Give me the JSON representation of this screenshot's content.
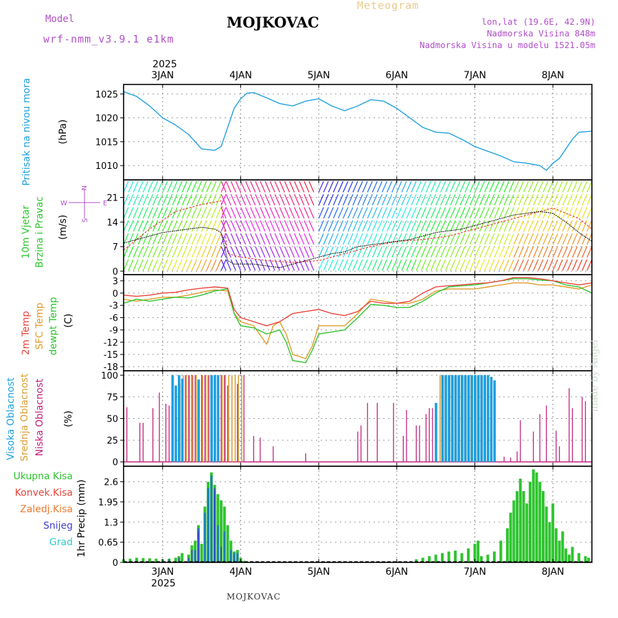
{
  "header": {
    "title": "MOJKOVAC",
    "subtitle": "Meteogram",
    "model_label": "Model",
    "model_name": "wrf-nmm_v3.9.1 e1km",
    "lonlat": "lon,lat (19.6E, 42.9N)",
    "elevation": "Nadmorska Visina 848m",
    "model_elevation": "Nadmorska Visina u modelu 1521.05m"
  },
  "footer": {
    "station": "MOJKOVAC",
    "credit": "made by Angel"
  },
  "colors": {
    "pressure": "#1e9fe0",
    "temp": "#e8433a",
    "sfc": "#e09b2a",
    "dewpt": "#2fc42f",
    "high_cloud": "#1e9fe0",
    "mid_cloud": "#d9a036",
    "low_cloud": "#c0207c",
    "total_precip": "#2fc42f",
    "conv_precip": "#1e7fb4",
    "snow": "#4040d0"
  },
  "chart_data": {
    "type": "line",
    "year": "2025",
    "x_axis": {
      "unit": "hours since 2025-01-02 12:00",
      "range": [
        0,
        144
      ],
      "day_labels": [
        "3JAN",
        "4JAN",
        "5JAN",
        "6JAN",
        "7JAN",
        "8JAN"
      ],
      "day_hours": [
        12,
        36,
        60,
        84,
        108,
        132
      ]
    },
    "panels": [
      {
        "id": "pressure",
        "ylabels": [
          "Pritisak na nivou mora"
        ],
        "unit": "(hPa)",
        "ylim": [
          1007,
          1027
        ],
        "ticks": [
          1010,
          1015,
          1020,
          1025
        ],
        "series": [
          {
            "name": "Pritisak",
            "x": [
              0,
              4,
              8,
              12,
              16,
              20,
              24,
              28,
              30,
              32,
              34,
              36,
              38,
              40,
              44,
              48,
              52,
              56,
              60,
              64,
              68,
              72,
              76,
              80,
              84,
              88,
              92,
              96,
              100,
              104,
              108,
              112,
              116,
              120,
              124,
              128,
              130,
              132,
              134,
              136,
              138,
              140,
              144
            ],
            "y": [
              1025.5,
              1024.5,
              1022.5,
              1020,
              1018.5,
              1016.5,
              1013.5,
              1013.2,
              1014,
              1018,
              1022,
              1024,
              1025.2,
              1025.3,
              1024.2,
              1023,
              1022.5,
              1023.5,
              1024,
              1022.5,
              1021.5,
              1022.5,
              1023.8,
              1023.5,
              1022,
              1020,
              1018,
              1017,
              1016.8,
              1015.5,
              1014,
              1013,
              1012,
              1010.8,
              1010.5,
              1010,
              1009,
              1010.5,
              1011.5,
              1013.5,
              1015.5,
              1017,
              1017.2
            ]
          }
        ]
      },
      {
        "id": "wind",
        "ylabels": [
          "10m Vjetar",
          "Brzina i Pravac"
        ],
        "unit": "(m/s)",
        "ylim": [
          -1,
          26
        ],
        "ticks": [
          0,
          7,
          14,
          21
        ],
        "legend_compass": "w <-|-> E",
        "series": [
          {
            "name": "Brzina",
            "x": [
              0,
              4,
              8,
              12,
              16,
              20,
              24,
              28,
              30,
              32,
              34,
              36,
              40,
              44,
              48,
              52,
              56,
              60,
              64,
              68,
              72,
              76,
              80,
              84,
              88,
              92,
              96,
              100,
              104,
              108,
              112,
              116,
              120,
              124,
              128,
              132,
              136,
              140,
              144
            ],
            "y": [
              8,
              9,
              10,
              11,
              11.5,
              12,
              12.5,
              12,
              11,
              3,
              2,
              2,
              2,
              1.5,
              1,
              2,
              3,
              4,
              5,
              5.5,
              7,
              7.5,
              8,
              8.5,
              9,
              10,
              11,
              11.5,
              12,
              13,
              14,
              15,
              16,
              16.5,
              17,
              16.5,
              14,
              11,
              8.5
            ]
          },
          {
            "name": "Udari",
            "x": [
              0,
              8,
              16,
              24,
              30,
              32,
              36,
              44,
              52,
              60,
              68,
              76,
              84,
              92,
              100,
              108,
              116,
              124,
              132,
              140,
              144
            ],
            "y": [
              6,
              12,
              17,
              19,
              20,
              5,
              4,
              3,
              2.5,
              3,
              5,
              7,
              8.5,
              9,
              10,
              12,
              14,
              16,
              18,
              15,
              12
            ]
          }
        ]
      },
      {
        "id": "temperature",
        "ylabels": [
          "2m Temp",
          "SFC Temp",
          "dewpt Temp"
        ],
        "unit": "(C)",
        "ylim": [
          -19,
          4.5
        ],
        "ticks": [
          3,
          0,
          -3,
          -6,
          -9,
          -12,
          -15,
          -18
        ],
        "series": [
          {
            "name": "2m Temp",
            "x": [
              0,
              4,
              8,
              12,
              16,
              20,
              24,
              28,
              32,
              34,
              36,
              40,
              44,
              48,
              52,
              56,
              60,
              64,
              68,
              72,
              76,
              80,
              84,
              88,
              92,
              96,
              100,
              104,
              108,
              112,
              116,
              120,
              124,
              128,
              132,
              136,
              140,
              144
            ],
            "y": [
              -0.5,
              -0.8,
              -0.5,
              0,
              0.2,
              0.8,
              1.2,
              1.5,
              1.2,
              -4,
              -6,
              -7,
              -8,
              -7,
              -5,
              -4.5,
              -4,
              -5,
              -5.5,
              -4.5,
              -2,
              -2.5,
              -2.5,
              -2,
              0,
              1.5,
              1.8,
              2,
              2.3,
              2.5,
              3,
              3.8,
              3.8,
              3.5,
              3,
              2.5,
              2,
              2.5
            ]
          },
          {
            "name": "SFC Temp",
            "x": [
              0,
              4,
              8,
              12,
              16,
              20,
              24,
              28,
              32,
              34,
              36,
              40,
              44,
              46,
              48,
              50,
              52,
              56,
              58,
              60,
              64,
              68,
              72,
              76,
              80,
              84,
              88,
              92,
              96,
              100,
              104,
              108,
              112,
              116,
              120,
              124,
              128,
              132,
              136,
              140,
              144
            ],
            "y": [
              -1.5,
              -2,
              -1.5,
              -1,
              -1,
              -0.5,
              0.2,
              0.8,
              0.5,
              -5,
              -7,
              -8,
              -12.5,
              -8,
              -7,
              -10,
              -15,
              -16,
              -13,
              -8,
              -8,
              -8,
              -5,
              -1.5,
              -2,
              -2.5,
              -2.5,
              -1.5,
              0.5,
              1,
              1,
              1,
              1.5,
              2,
              2.5,
              2.5,
              2,
              2,
              1.5,
              1,
              2
            ]
          },
          {
            "name": "dewpt Temp",
            "x": [
              0,
              4,
              8,
              12,
              16,
              20,
              24,
              28,
              32,
              34,
              36,
              40,
              44,
              46,
              48,
              50,
              52,
              56,
              58,
              60,
              64,
              68,
              72,
              76,
              80,
              84,
              88,
              92,
              96,
              100,
              104,
              108,
              112,
              116,
              120,
              124,
              128,
              132,
              136,
              140,
              144
            ],
            "y": [
              -2.5,
              -1.5,
              -2,
              -1.5,
              -1,
              -1.2,
              -0.5,
              0.5,
              1,
              -5,
              -8,
              -8.5,
              -10,
              -9.5,
              -9,
              -12,
              -16.5,
              -17,
              -14,
              -10,
              -9.5,
              -9,
              -6,
              -2.8,
              -3,
              -3.5,
              -3.5,
              -2,
              0,
              1.5,
              1.8,
              2,
              2.5,
              3,
              3.5,
              3.5,
              3.2,
              3,
              2,
              1.5,
              0
            ]
          }
        ]
      },
      {
        "id": "clouds",
        "ylabels": [
          "Visoka Oblacnost",
          "Srednja Oblacnost",
          "Niska Oblacnost"
        ],
        "unit": "(%)",
        "ylim": [
          -5,
          105
        ],
        "ticks": [
          0,
          25,
          50,
          75,
          100
        ],
        "series": [
          {
            "name": "Visoka",
            "x": [
              15,
              16,
              17,
              18,
              23,
              27,
              28,
              29,
              96,
              98,
              99,
              100,
              101,
              102,
              103,
              104,
              105,
              106,
              107,
              108,
              109,
              110,
              111,
              112,
              113,
              114
            ],
            "y": [
              100,
              88,
              100,
              96,
              95,
              100,
              100,
              100,
              68,
              100,
              100,
              100,
              100,
              100,
              100,
              100,
              100,
              100,
              100,
              100,
              100,
              100,
              100,
              100,
              98,
              94
            ]
          },
          {
            "name": "Srednja",
            "x": [
              17,
              18,
              19,
              20,
              21,
              22,
              24,
              25,
              26,
              30,
              31,
              32,
              33,
              34,
              35,
              36,
              97,
              98,
              99,
              100,
              101,
              102,
              103,
              104,
              105,
              106,
              107,
              108,
              109,
              110,
              111
            ],
            "y": [
              90,
              100,
              100,
              100,
              100,
              100,
              100,
              100,
              100,
              100,
              100,
              100,
              100,
              100,
              100,
              100,
              100,
              100,
              100,
              100,
              100,
              100,
              100,
              100,
              100,
              100,
              100,
              100,
              100,
              100,
              100
            ]
          },
          {
            "name": "Niska",
            "x": [
              1,
              5,
              6,
              9,
              11,
              13,
              14,
              19,
              20,
              21,
              22,
              24,
              25,
              26,
              28,
              29,
              30,
              31,
              32,
              35,
              37,
              40,
              42,
              46,
              56,
              72,
              73,
              75,
              78,
              83,
              86,
              87,
              90,
              91,
              93,
              94,
              95,
              117,
              119,
              121,
              122,
              126,
              128,
              130,
              133,
              134,
              137,
              138,
              141,
              142
            ],
            "y": [
              63,
              45,
              45,
              62,
              80,
              67,
              65,
              100,
              100,
              100,
              100,
              100,
              100,
              100,
              100,
              100,
              100,
              100,
              88,
              90,
              100,
              30,
              28,
              18,
              10,
              35,
              42,
              68,
              68,
              68,
              30,
              60,
              42,
              42,
              55,
              62,
              62,
              6,
              5,
              12,
              48,
              35,
              55,
              65,
              36,
              18,
              85,
              62,
              75,
              70
            ]
          }
        ]
      },
      {
        "id": "precip",
        "ylabels": [
          "Ukupna Kisa",
          "Konvek.Kisa",
          "Zaledj.Kisa",
          "Snijeg",
          "Grad"
        ],
        "unit": "1hr Precip (mm)",
        "ylim": [
          0,
          3.1
        ],
        "ticks": [
          0,
          0.65,
          1.3,
          1.95,
          2.6
        ],
        "series": [
          {
            "name": "Ukupna Kisa",
            "x": [
              0,
              2,
              4,
              6,
              8,
              10,
              12,
              14,
              16,
              17,
              18,
              20,
              21,
              22,
              23,
              24,
              25,
              26,
              27,
              28,
              29,
              30,
              31,
              32,
              33,
              34,
              35,
              36,
              37,
              38,
              90,
              92,
              94,
              96,
              98,
              100,
              102,
              104,
              106,
              108,
              109,
              110,
              112,
              114,
              116,
              118,
              119,
              120,
              121,
              122,
              123,
              124,
              125,
              126,
              127,
              128,
              129,
              130,
              131,
              132,
              133,
              134,
              135,
              136,
              137,
              138,
              140,
              142,
              143
            ],
            "y": [
              0.1,
              0.12,
              0.15,
              0.14,
              0.13,
              0.12,
              0.1,
              0.12,
              0.15,
              0.2,
              0.3,
              0.25,
              0.55,
              0.7,
              1.2,
              0.6,
              1.8,
              2.6,
              2.9,
              2.5,
              2.2,
              2.0,
              1.8,
              1.2,
              0.7,
              0.35,
              0.4,
              0.15,
              0.05,
              0.02,
              0.1,
              0.15,
              0.2,
              0.25,
              0.3,
              0.35,
              0.38,
              0.3,
              0.45,
              0.6,
              0.7,
              0.2,
              0.25,
              0.35,
              0.7,
              1.1,
              1.6,
              2.0,
              2.3,
              2.7,
              2.3,
              1.9,
              2.6,
              3.0,
              2.9,
              2.6,
              2.3,
              1.8,
              1.3,
              1.9,
              1.1,
              0.7,
              1.0,
              0.45,
              0.25,
              0.5,
              0.3,
              0.2,
              0.15
            ]
          },
          {
            "name": "Konvek.Kisa",
            "x": [
              22,
              23,
              25,
              26,
              27,
              28,
              29,
              31,
              33,
              34,
              35
            ],
            "y": [
              0.4,
              1.1,
              1.6,
              2.4,
              2.8,
              2.3,
              1.2,
              1.0,
              0.4,
              0.3,
              0.3
            ]
          },
          {
            "name": "Snijeg",
            "x": [
              14,
              17,
              20,
              21,
              23,
              28,
              30
            ],
            "y": [
              0.1,
              0.15,
              0.15,
              0.4,
              1.0,
              2.4,
              0.5
            ]
          }
        ]
      }
    ]
  }
}
